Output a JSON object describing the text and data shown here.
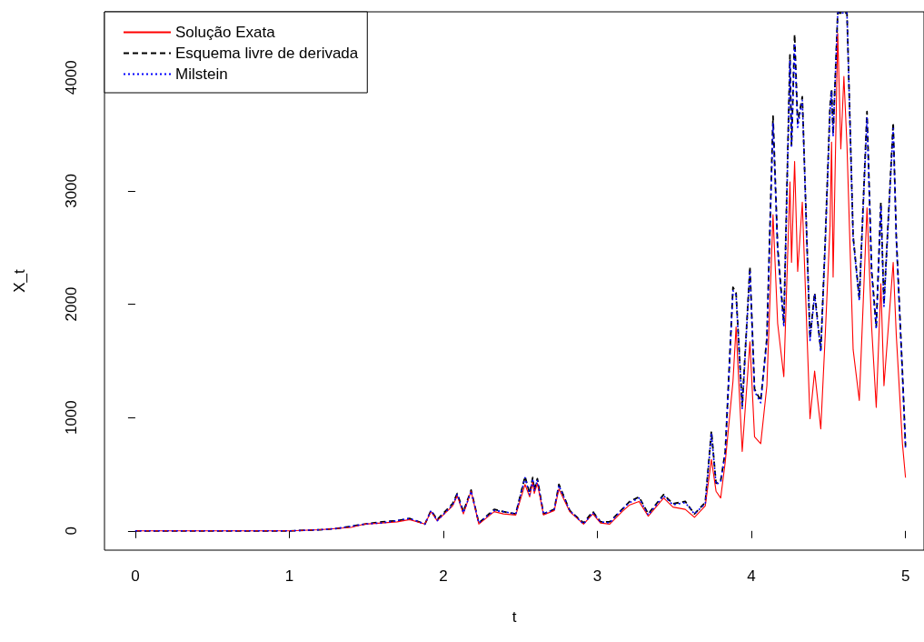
{
  "chart_data": {
    "type": "line",
    "xlabel": "t",
    "ylabel": "X_t",
    "xlim": [
      -0.2,
      5.12
    ],
    "xticks": [
      0,
      1,
      2,
      3,
      4,
      5
    ],
    "ylim": [
      -170,
      4580
    ],
    "yticks": [
      0,
      1000,
      2000,
      3000,
      4000
    ],
    "grid": false,
    "legend": "top left",
    "marker": "none",
    "x": [
      0,
      0.25,
      0.5,
      0.75,
      1,
      1.2,
      1.3,
      1.4,
      1.49,
      1.6,
      1.7,
      1.78,
      1.88,
      1.92,
      1.96,
      2.06,
      2.09,
      2.13,
      2.18,
      2.23,
      2.33,
      2.39,
      2.47,
      2.53,
      2.56,
      2.58,
      2.59,
      2.61,
      2.65,
      2.72,
      2.75,
      2.82,
      2.91,
      2.97,
      3.02,
      3.08,
      3.16,
      3.21,
      3.27,
      3.33,
      3.43,
      3.49,
      3.57,
      3.63,
      3.7,
      3.74,
      3.77,
      3.8,
      3.83,
      3.88,
      3.9,
      3.94,
      3.99,
      4.02,
      4.06,
      4.1,
      4.14,
      4.17,
      4.21,
      4.25,
      4.26,
      4.28,
      4.3,
      4.33,
      4.38,
      4.41,
      4.45,
      4.48,
      4.51,
      4.52,
      4.53,
      4.56,
      4.58,
      4.6,
      4.62,
      4.66,
      4.7,
      4.75,
      4.78,
      4.81,
      4.84,
      4.86,
      4.92,
      4.94,
      4.98,
      5
    ],
    "series": [
      {
        "name": "Solução Exata",
        "color": "#ff0000",
        "line_style": "solid",
        "values": [
          0,
          0,
          0,
          0,
          0,
          10,
          20,
          30,
          60,
          70,
          80,
          100,
          60,
          170,
          90,
          220,
          310,
          150,
          350,
          60,
          170,
          150,
          140,
          410,
          300,
          430,
          330,
          420,
          140,
          180,
          370,
          170,
          60,
          150,
          70,
          60,
          170,
          230,
          260,
          130,
          290,
          210,
          190,
          120,
          220,
          630,
          350,
          290,
          610,
          1320,
          1800,
          700,
          1670,
          830,
          770,
          1280,
          2790,
          1830,
          1360,
          3080,
          2370,
          3260,
          2290,
          2900,
          990,
          1410,
          900,
          1760,
          2690,
          3430,
          2240,
          4390,
          3370,
          4010,
          3400,
          1600,
          1150,
          2850,
          1800,
          1090,
          2180,
          1280,
          2370,
          1730,
          770,
          470
        ]
      },
      {
        "name": "Esquema livre de derivada",
        "color": "#000000",
        "line_style": "dashed",
        "values": [
          0,
          0,
          0,
          0,
          0,
          10,
          20,
          40,
          60,
          80,
          90,
          110,
          60,
          180,
          100,
          240,
          330,
          170,
          360,
          70,
          190,
          170,
          150,
          480,
          330,
          470,
          360,
          460,
          150,
          190,
          410,
          180,
          70,
          170,
          80,
          80,
          190,
          260,
          300,
          150,
          320,
          240,
          260,
          150,
          250,
          880,
          420,
          440,
          700,
          2150,
          2100,
          1100,
          2330,
          1250,
          1150,
          1700,
          3660,
          2500,
          1830,
          4200,
          3400,
          4380,
          3600,
          3830,
          1700,
          2100,
          1600,
          2600,
          3750,
          3900,
          3500,
          4570,
          4570,
          4570,
          4570,
          2600,
          2050,
          3700,
          2300,
          1800,
          2900,
          2000,
          3600,
          2600,
          1400,
          750
        ]
      },
      {
        "name": "Milstein",
        "color": "#0000ff",
        "line_style": "dotted",
        "values": [
          0,
          0,
          0,
          0,
          0,
          10,
          20,
          40,
          60,
          70,
          90,
          110,
          60,
          180,
          90,
          230,
          320,
          160,
          350,
          70,
          180,
          170,
          150,
          470,
          320,
          460,
          350,
          450,
          150,
          190,
          400,
          180,
          60,
          160,
          80,
          70,
          190,
          250,
          290,
          140,
          310,
          230,
          250,
          150,
          240,
          860,
          410,
          430,
          690,
          2120,
          2080,
          1080,
          2300,
          1230,
          1130,
          1680,
          3600,
          2480,
          1800,
          4150,
          3380,
          4300,
          3560,
          3800,
          1680,
          2080,
          1580,
          2570,
          3700,
          3880,
          3480,
          4570,
          4570,
          4570,
          4570,
          2580,
          2030,
          3650,
          2280,
          1780,
          2870,
          1980,
          3550,
          2580,
          1380,
          730
        ]
      }
    ]
  }
}
